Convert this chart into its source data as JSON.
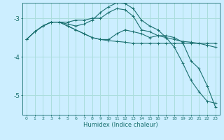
{
  "xlabel": "Humidex (Indice chaleur)",
  "bg_color": "#cceeff",
  "grid_color": "#aadddd",
  "line_color": "#1a7070",
  "xlim": [
    -0.5,
    23.5
  ],
  "ylim": [
    -5.5,
    -2.6
  ],
  "yticks": [
    -5,
    -4,
    -3
  ],
  "xticks": [
    0,
    1,
    2,
    3,
    4,
    5,
    6,
    7,
    8,
    9,
    10,
    11,
    12,
    13,
    14,
    15,
    16,
    17,
    18,
    19,
    20,
    21,
    22,
    23
  ],
  "lines": [
    {
      "x": [
        0,
        1,
        2,
        3,
        4,
        5,
        6,
        7,
        8,
        9,
        10,
        11,
        12,
        13,
        14,
        15,
        16,
        17,
        18,
        19,
        20,
        21,
        22,
        23
      ],
      "y": [
        -3.55,
        -3.35,
        -3.2,
        -3.1,
        -3.1,
        -3.15,
        -3.2,
        -3.15,
        -3.05,
        -2.85,
        -2.7,
        -2.6,
        -2.62,
        -2.75,
        -3.05,
        -3.2,
        -3.3,
        -3.5,
        -3.75,
        -4.15,
        -4.6,
        -4.9,
        -5.15,
        -5.2
      ]
    },
    {
      "x": [
        0,
        1,
        2,
        3,
        4,
        5,
        6,
        7,
        8,
        9,
        10,
        11,
        12,
        13,
        14,
        15,
        16,
        17,
        18,
        19,
        20,
        21,
        22,
        23
      ],
      "y": [
        -3.55,
        -3.35,
        -3.2,
        -3.1,
        -3.1,
        -3.2,
        -3.3,
        -3.4,
        -3.5,
        -3.55,
        -3.58,
        -3.6,
        -3.62,
        -3.65,
        -3.65,
        -3.65,
        -3.65,
        -3.65,
        -3.65,
        -3.65,
        -3.65,
        -3.65,
        -3.65,
        -3.65
      ]
    },
    {
      "x": [
        0,
        1,
        2,
        3,
        4,
        5,
        6,
        7,
        8,
        9,
        10,
        11,
        12,
        13,
        14,
        15,
        16,
        17,
        18,
        19,
        20,
        21,
        22,
        23
      ],
      "y": [
        -3.55,
        -3.35,
        -3.2,
        -3.1,
        -3.1,
        -3.2,
        -3.3,
        -3.4,
        -3.5,
        -3.55,
        -3.55,
        -3.4,
        -3.3,
        -3.35,
        -3.4,
        -3.5,
        -3.45,
        -3.5,
        -3.55,
        -3.6,
        -3.62,
        -3.65,
        -3.7,
        -3.75
      ]
    },
    {
      "x": [
        2,
        3,
        4,
        5,
        6,
        7,
        8,
        9,
        10,
        11,
        12,
        13,
        14,
        15,
        16,
        17,
        18,
        19,
        20,
        21,
        22,
        23
      ],
      "y": [
        -3.2,
        -3.1,
        -3.1,
        -3.1,
        -3.05,
        -3.05,
        -3.0,
        -3.0,
        -2.85,
        -2.75,
        -2.78,
        -2.95,
        -3.3,
        -3.35,
        -3.45,
        -3.45,
        -3.5,
        -3.62,
        -4.1,
        -4.3,
        -4.75,
        -5.3
      ]
    }
  ]
}
